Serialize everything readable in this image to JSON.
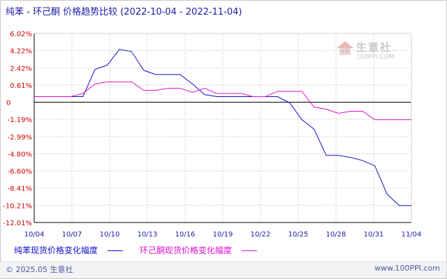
{
  "title": {
    "main": "纯苯 - 环己酮 价格趋势比较",
    "range": "(2022-10-04 - 2022-11-04)"
  },
  "watermark": {
    "name": "生意社",
    "site": "100PPI.COM"
  },
  "legend": {
    "items": [
      {
        "label": "纯苯现货价格变化幅度",
        "color": "#1010c8"
      },
      {
        "label": "环己酮现货价格变化幅度",
        "color": "#e010d0"
      }
    ]
  },
  "footer": {
    "left": "© 2025.05 生意社",
    "right": "www.100PPI.com"
  },
  "colors": {
    "axis": "#000000",
    "grid": "#d0d0d0",
    "ytick": "#cc0000",
    "xtick": "#1a1aa6"
  },
  "chart_data": {
    "type": "line",
    "x_ticks": [
      "10/04",
      "10/07",
      "10/10",
      "10/13",
      "10/16",
      "10/19",
      "10/22",
      "10/25",
      "10/28",
      "10/31",
      "11/04"
    ],
    "y_ticks": [
      "6.02%",
      "4.22%",
      "2.42%",
      "0.61%",
      "0",
      "-1.19%",
      "-2.99%",
      "-4.80%",
      "-6.60%",
      "-8.41%",
      "-10.21%",
      "-12.01%"
    ],
    "ylim": [
      -12.01,
      6.02
    ],
    "x_days": [
      0,
      31
    ],
    "grid": true,
    "legend_position": "bottom",
    "series": [
      {
        "name": "纯苯现货价格变化幅度",
        "color": "#1010c8",
        "points": [
          [
            0,
            0
          ],
          [
            3,
            0
          ],
          [
            4,
            0
          ],
          [
            5,
            2.6
          ],
          [
            6,
            3.0
          ],
          [
            7,
            4.5
          ],
          [
            8,
            4.3
          ],
          [
            9,
            2.5
          ],
          [
            10,
            2.1
          ],
          [
            11,
            2.1
          ],
          [
            12,
            2.1
          ],
          [
            13,
            1.2
          ],
          [
            14,
            0.2
          ],
          [
            15,
            0
          ],
          [
            16,
            0
          ],
          [
            17,
            0
          ],
          [
            18,
            0
          ],
          [
            19,
            0
          ],
          [
            20,
            0
          ],
          [
            21,
            -0.6
          ],
          [
            22,
            -2.2
          ],
          [
            23,
            -3.1
          ],
          [
            24,
            -5.6
          ],
          [
            25,
            -5.6
          ],
          [
            26,
            -5.8
          ],
          [
            27,
            -6.1
          ],
          [
            28,
            -6.6
          ],
          [
            29,
            -9.3
          ],
          [
            30,
            -10.4
          ],
          [
            31,
            -10.4
          ]
        ]
      },
      {
        "name": "环己酮现货价格变化幅度",
        "color": "#e010d0",
        "points": [
          [
            0,
            0
          ],
          [
            3,
            0
          ],
          [
            4,
            0.3
          ],
          [
            5,
            1.2
          ],
          [
            6,
            1.4
          ],
          [
            7,
            1.4
          ],
          [
            8,
            1.4
          ],
          [
            9,
            0.6
          ],
          [
            10,
            0.6
          ],
          [
            11,
            0.8
          ],
          [
            12,
            0.8
          ],
          [
            13,
            0.4
          ],
          [
            14,
            0.8
          ],
          [
            15,
            0.3
          ],
          [
            16,
            0.3
          ],
          [
            17,
            0.3
          ],
          [
            18,
            0
          ],
          [
            19,
            0
          ],
          [
            20,
            0.5
          ],
          [
            21,
            0.5
          ],
          [
            22,
            0.5
          ],
          [
            23,
            -1.0
          ],
          [
            24,
            -1.2
          ],
          [
            25,
            -1.6
          ],
          [
            26,
            -1.4
          ],
          [
            27,
            -1.4
          ],
          [
            28,
            -2.2
          ],
          [
            29,
            -2.2
          ],
          [
            30,
            -2.2
          ],
          [
            31,
            -2.2
          ]
        ]
      }
    ]
  }
}
